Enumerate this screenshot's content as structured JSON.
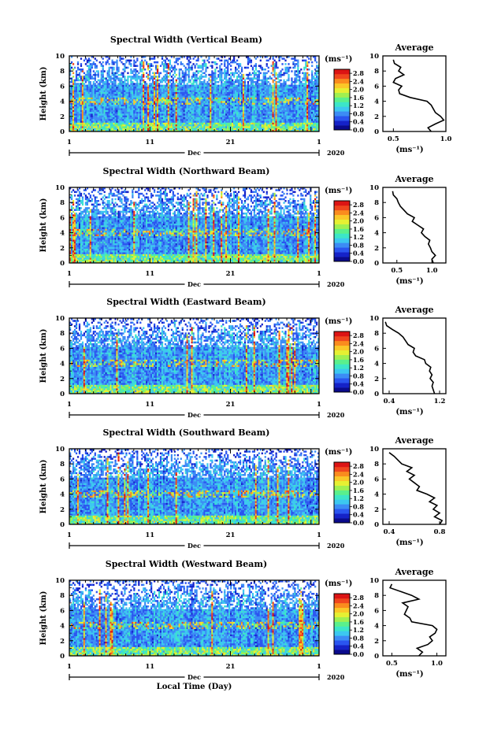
{
  "colormap": [
    "#0a0a8c",
    "#1522c8",
    "#2a55f0",
    "#3c8cf5",
    "#3cc8f0",
    "#3ce6c8",
    "#5af08c",
    "#a0f050",
    "#e6f032",
    "#fac828",
    "#fa8c1e",
    "#f0461e",
    "#dc1414"
  ],
  "chart_data": [
    {
      "type": "heatmap",
      "title": "Spectral Width (Vertical Beam)",
      "ylabel": "Height (km)",
      "ylim": [
        0,
        10
      ],
      "yticks": [
        "0",
        "2",
        "4",
        "6",
        "8",
        "10"
      ],
      "xticks": [
        "1",
        "11",
        "21",
        "1"
      ],
      "xaxis_month": "Dec",
      "year": "2020",
      "colorbar_unit": "(ms⁻¹)",
      "colorbar_ticks": [
        "0.0",
        "0.4",
        "0.8",
        "1.2",
        "1.6",
        "2.0",
        "2.4",
        "2.8"
      ],
      "colorbar_range": [
        0,
        3.0
      ],
      "profile": {
        "title": "Average",
        "xlabel": "(ms⁻¹)",
        "xlim": [
          0.4,
          1.0
        ],
        "xticks": [
          "0.5",
          "1.0"
        ],
        "heights": [
          0,
          0.5,
          1,
          1.5,
          2,
          2.5,
          3,
          3.5,
          4,
          4.5,
          5,
          5.5,
          6,
          6.5,
          7,
          7.5,
          8,
          8.5,
          9,
          9.5
        ],
        "values": [
          0.86,
          0.83,
          0.9,
          0.98,
          0.95,
          0.9,
          0.88,
          0.86,
          0.82,
          0.66,
          0.56,
          0.55,
          0.58,
          0.5,
          0.52,
          0.6,
          0.55,
          0.57,
          0.51,
          0.5
        ]
      }
    },
    {
      "type": "heatmap",
      "title": "Spectral Width (Northward Beam)",
      "ylabel": "Height (km)",
      "ylim": [
        0,
        10
      ],
      "yticks": [
        "0",
        "2",
        "4",
        "6",
        "8",
        "10"
      ],
      "xticks": [
        "1",
        "11",
        "21",
        "1"
      ],
      "xaxis_month": "Dec",
      "year": "2020",
      "colorbar_unit": "(ms⁻¹)",
      "colorbar_ticks": [
        "0.0",
        "0.4",
        "0.8",
        "1.2",
        "1.6",
        "2.0",
        "2.4",
        "2.8"
      ],
      "colorbar_range": [
        0,
        3.0
      ],
      "profile": {
        "title": "Average",
        "xlabel": "(ms⁻¹)",
        "xlim": [
          0.3,
          1.2
        ],
        "xticks": [
          "0.5",
          "1.0"
        ],
        "heights": [
          0,
          0.5,
          1,
          1.5,
          2,
          2.5,
          3,
          3.5,
          4,
          4.5,
          5,
          5.5,
          6,
          6.5,
          7,
          7.5,
          8,
          8.5,
          9,
          9.5
        ],
        "values": [
          1.02,
          1.0,
          1.05,
          1.0,
          0.98,
          0.95,
          0.97,
          0.9,
          0.85,
          0.88,
          0.8,
          0.72,
          0.75,
          0.65,
          0.6,
          0.55,
          0.52,
          0.5,
          0.45,
          0.44
        ]
      }
    },
    {
      "type": "heatmap",
      "title": "Spectral Width (Eastward Beam)",
      "ylabel": "Height (km)",
      "ylim": [
        0,
        10
      ],
      "yticks": [
        "0",
        "2",
        "4",
        "6",
        "8",
        "10"
      ],
      "xticks": [
        "1",
        "11",
        "21",
        "1"
      ],
      "xaxis_month": "Dec",
      "year": "2020",
      "colorbar_unit": "(ms⁻¹)",
      "colorbar_ticks": [
        "0.0",
        "0.4",
        "0.8",
        "1.2",
        "1.6",
        "2.0",
        "2.4",
        "2.8"
      ],
      "colorbar_range": [
        0,
        3.0
      ],
      "profile": {
        "title": "Average",
        "xlabel": "(ms⁻¹)",
        "xlim": [
          0.3,
          1.3
        ],
        "xticks": [
          "0.4",
          "1.2"
        ],
        "heights": [
          0,
          0.5,
          1,
          1.5,
          2,
          2.5,
          3,
          3.5,
          4,
          4.5,
          5,
          5.5,
          6,
          6.5,
          7,
          7.5,
          8,
          8.5,
          9,
          9.5
        ],
        "values": [
          1.12,
          1.1,
          1.08,
          1.1,
          1.05,
          1.08,
          1.04,
          1.06,
          0.98,
          0.96,
          0.82,
          0.78,
          0.8,
          0.7,
          0.66,
          0.62,
          0.55,
          0.45,
          0.36,
          0.34
        ]
      }
    },
    {
      "type": "heatmap",
      "title": "Spectral Width (Southward Beam)",
      "ylabel": "Height (km)",
      "ylim": [
        0,
        10
      ],
      "yticks": [
        "0",
        "2",
        "4",
        "6",
        "8",
        "10"
      ],
      "xticks": [
        "1",
        "11",
        "21",
        "1"
      ],
      "xaxis_month": "Dec",
      "year": "2020",
      "colorbar_unit": "(ms⁻¹)",
      "colorbar_ticks": [
        "0.0",
        "0.4",
        "0.8",
        "1.2",
        "1.6",
        "2.0",
        "2.4",
        "2.8"
      ],
      "colorbar_range": [
        0,
        3.0
      ],
      "profile": {
        "title": "Average",
        "xlabel": "(ms⁻¹)",
        "xlim": [
          0.35,
          0.85
        ],
        "xticks": [
          "0.4",
          "0.8"
        ],
        "heights": [
          0,
          0.5,
          1,
          1.5,
          2,
          2.5,
          3,
          3.5,
          4,
          4.5,
          5,
          5.5,
          6,
          6.5,
          7,
          7.5,
          8,
          8.5,
          9,
          9.5
        ],
        "values": [
          0.8,
          0.82,
          0.76,
          0.8,
          0.75,
          0.78,
          0.72,
          0.76,
          0.7,
          0.62,
          0.64,
          0.6,
          0.56,
          0.6,
          0.54,
          0.58,
          0.5,
          0.47,
          0.44,
          0.4
        ]
      }
    },
    {
      "type": "heatmap",
      "title": "Spectral Width (Westward Beam)",
      "ylabel": "Height (km)",
      "xlabel": "Local Time (Day)",
      "ylim": [
        0,
        10
      ],
      "yticks": [
        "0",
        "2",
        "4",
        "6",
        "8",
        "10"
      ],
      "xticks": [
        "1",
        "11",
        "21",
        "1"
      ],
      "xaxis_month": "Dec",
      "year": "2020",
      "colorbar_unit": "(ms⁻¹)",
      "colorbar_ticks": [
        "0.0",
        "0.4",
        "0.8",
        "1.2",
        "1.6",
        "2.0",
        "2.4",
        "2.8"
      ],
      "colorbar_range": [
        0,
        3.0
      ],
      "profile": {
        "title": "Average",
        "xlabel": "(ms⁻¹)",
        "xlim": [
          0.4,
          1.1
        ],
        "xticks": [
          "0.5",
          "1.0"
        ],
        "heights": [
          0,
          0.5,
          1,
          1.5,
          2,
          2.5,
          3,
          3.5,
          4,
          4.5,
          5,
          5.5,
          6,
          6.5,
          7,
          7.5,
          8,
          8.5,
          9,
          9.5
        ],
        "values": [
          0.8,
          0.84,
          0.78,
          0.9,
          0.95,
          0.92,
          0.98,
          1.0,
          0.95,
          0.72,
          0.7,
          0.64,
          0.66,
          0.68,
          0.62,
          0.8,
          0.72,
          0.6,
          0.48,
          0.5
        ]
      }
    }
  ]
}
